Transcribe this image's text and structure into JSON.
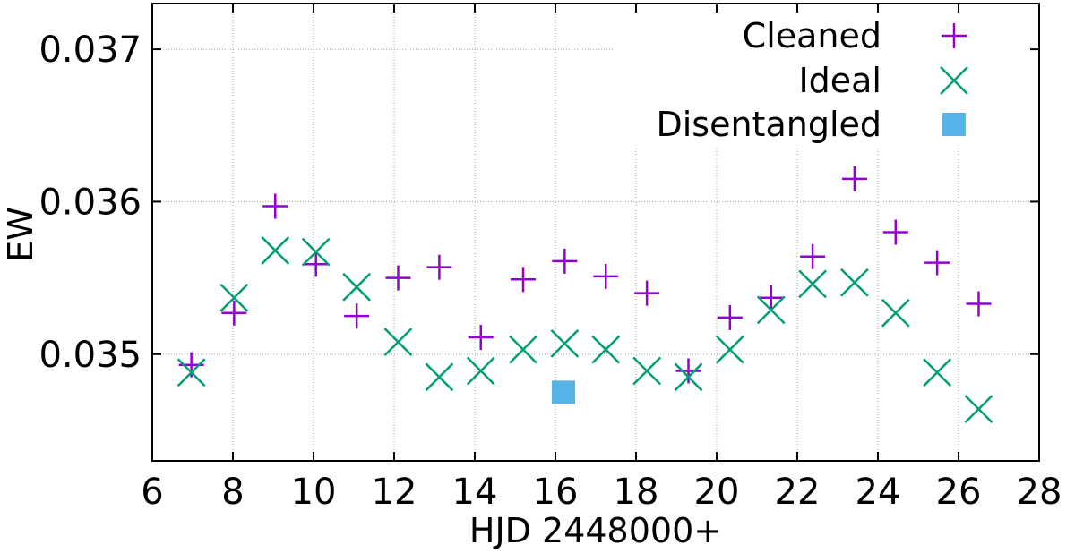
{
  "chart_data": {
    "type": "scatter",
    "title": "",
    "xlabel": "HJD 2448000+",
    "ylabel": "EW",
    "xlim": [
      6,
      28
    ],
    "ylim": [
      0.0343,
      0.0373
    ],
    "xticks": [
      6,
      8,
      10,
      12,
      14,
      16,
      18,
      20,
      22,
      24,
      26,
      28
    ],
    "xtick_labels": [
      "6",
      "8",
      "10",
      "12",
      "14",
      "16",
      "18",
      "20",
      "22",
      "24",
      "26",
      "28"
    ],
    "yticks": [
      0.035,
      0.036,
      0.037
    ],
    "ytick_labels": [
      "0.035",
      "0.036",
      "0.037"
    ],
    "grid": true,
    "legend_position": "top-right",
    "series": [
      {
        "name": "Cleaned",
        "marker": "plus",
        "color": "#9400d3",
        "x": [
          6.97,
          8.03,
          9.05,
          10.06,
          11.07,
          12.1,
          13.12,
          14.15,
          15.2,
          16.23,
          17.25,
          18.27,
          19.3,
          20.33,
          21.35,
          22.38,
          23.42,
          24.44,
          25.47,
          26.5
        ],
        "y": [
          0.03493,
          0.03527,
          0.03597,
          0.03559,
          0.03525,
          0.0355,
          0.03557,
          0.03511,
          0.03549,
          0.03561,
          0.03551,
          0.0354,
          0.03489,
          0.03524,
          0.03537,
          0.03564,
          0.03615,
          0.0358,
          0.0356,
          0.03533
        ]
      },
      {
        "name": "Ideal",
        "marker": "cross",
        "color": "#009e73",
        "x": [
          6.97,
          8.03,
          9.05,
          10.06,
          11.07,
          12.1,
          13.12,
          14.15,
          15.2,
          16.23,
          17.25,
          18.27,
          19.3,
          20.33,
          21.35,
          22.38,
          23.42,
          24.44,
          25.47,
          26.5
        ],
        "y": [
          0.03488,
          0.03537,
          0.03568,
          0.03567,
          0.03544,
          0.03508,
          0.03485,
          0.03489,
          0.03503,
          0.03507,
          0.03503,
          0.03489,
          0.03485,
          0.03503,
          0.03529,
          0.03546,
          0.03547,
          0.03527,
          0.03488,
          0.03464
        ]
      },
      {
        "name": "Disentangled",
        "marker": "square",
        "color": "#56b4e9",
        "x": [
          16.2
        ],
        "y": [
          0.03475
        ]
      }
    ]
  }
}
